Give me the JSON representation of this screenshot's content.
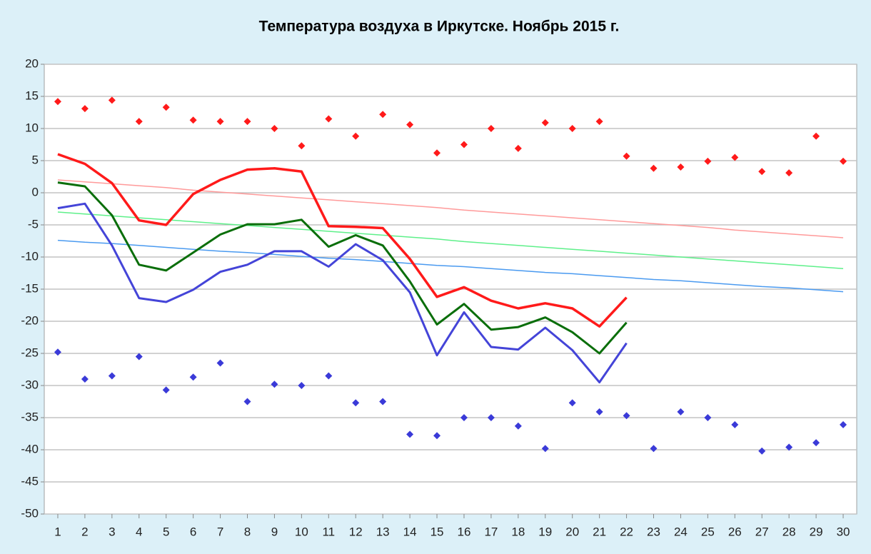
{
  "chart_data": {
    "type": "line",
    "title": "Температура воздуха в Иркутске. Ноябрь 2015 г.",
    "categories": [
      "1",
      "2",
      "3",
      "4",
      "5",
      "6",
      "7",
      "8",
      "9",
      "10",
      "11",
      "12",
      "13",
      "14",
      "15",
      "16",
      "17",
      "18",
      "19",
      "20",
      "21",
      "22",
      "23",
      "24",
      "25",
      "26",
      "27",
      "28",
      "29",
      "30"
    ],
    "ylim": [
      -50,
      20
    ],
    "yticks": [
      20,
      15,
      10,
      5,
      0,
      -5,
      -10,
      -15,
      -20,
      -25,
      -30,
      -35,
      -40,
      -45,
      -50
    ],
    "grid": true,
    "series": [
      {
        "color": "#ff9a9a",
        "style": "line",
        "width": 1.5,
        "values": [
          2,
          1.7,
          1.4,
          1.1,
          0.8,
          0.4,
          0.1,
          -0.2,
          -0.5,
          -0.8,
          -1.1,
          -1.4,
          -1.7,
          -2.0,
          -2.3,
          -2.7,
          -3.0,
          -3.3,
          -3.6,
          -3.9,
          -4.2,
          -4.5,
          -4.8,
          -5.1,
          -5.4,
          -5.8,
          -6.1,
          -6.4,
          -6.7,
          -7.0
        ]
      },
      {
        "color": "#5ef08a",
        "style": "line",
        "width": 1.5,
        "values": [
          -3,
          -3.3,
          -3.6,
          -3.9,
          -4.2,
          -4.5,
          -4.8,
          -5.1,
          -5.4,
          -5.7,
          -6.0,
          -6.3,
          -6.6,
          -6.9,
          -7.2,
          -7.6,
          -7.9,
          -8.2,
          -8.5,
          -8.8,
          -9.1,
          -9.4,
          -9.7,
          -10.0,
          -10.3,
          -10.6,
          -10.9,
          -11.2,
          -11.5,
          -11.8
        ]
      },
      {
        "color": "#4a9af0",
        "style": "line",
        "width": 1.5,
        "values": [
          -7.4,
          -7.7,
          -7.9,
          -8.2,
          -8.5,
          -8.8,
          -9.1,
          -9.3,
          -9.6,
          -9.9,
          -10.2,
          -10.4,
          -10.7,
          -11.0,
          -11.3,
          -11.5,
          -11.8,
          -12.1,
          -12.4,
          -12.6,
          -12.9,
          -13.2,
          -13.5,
          -13.7,
          -14.0,
          -14.3,
          -14.6,
          -14.8,
          -15.1,
          -15.4
        ]
      },
      {
        "color": "#ff1a1a",
        "style": "line",
        "width": 3.5,
        "values": [
          6,
          4.5,
          1.5,
          -4.3,
          -5,
          -0.2,
          2,
          3.6,
          3.8,
          3.3,
          -5.2,
          -5.3,
          -5.5,
          -10.3,
          -16.2,
          -14.7,
          -16.8,
          -18,
          -17.2,
          -18,
          -20.8,
          -16.3,
          null,
          null,
          null,
          null,
          null,
          null,
          null,
          null
        ]
      },
      {
        "color": "#0a6e0a",
        "style": "line",
        "width": 3,
        "values": [
          1.6,
          1,
          -3.5,
          -11.2,
          -12.1,
          -9.3,
          -6.5,
          -4.9,
          -4.9,
          -4.2,
          -8.4,
          -6.6,
          -8.2,
          -13.8,
          -20.5,
          -17.3,
          -21.3,
          -20.9,
          -19.4,
          -21.7,
          -25,
          -20.2,
          null,
          null,
          null,
          null,
          null,
          null,
          null,
          null
        ]
      },
      {
        "color": "#4444d8",
        "style": "line",
        "width": 3,
        "values": [
          -2.4,
          -1.7,
          -8.2,
          -16.4,
          -17,
          -15.1,
          -12.3,
          -11.2,
          -9.1,
          -9.1,
          -11.5,
          -8,
          -10.5,
          -15.5,
          -25.3,
          -18.6,
          -24,
          -24.4,
          -21,
          -24.5,
          -29.5,
          -23.4,
          null,
          null,
          null,
          null,
          null,
          null,
          null,
          null
        ]
      },
      {
        "color": "#ff1a1a",
        "style": "marker",
        "values": [
          14.2,
          13.1,
          14.4,
          11.1,
          13.3,
          11.3,
          11.1,
          11.1,
          10,
          7.3,
          11.5,
          8.8,
          12.2,
          10.6,
          6.2,
          7.5,
          10,
          6.9,
          10.9,
          10,
          11.1,
          5.7,
          3.8,
          4,
          4.9,
          5.5,
          3.3,
          3.1,
          8.8,
          4.9
        ]
      },
      {
        "color": "#3a3ad8",
        "style": "marker",
        "values": [
          -24.8,
          -29,
          -28.5,
          -25.5,
          -30.7,
          -28.7,
          -26.5,
          -32.5,
          -29.8,
          -30,
          -28.5,
          -32.7,
          -32.5,
          -37.6,
          -37.8,
          -35,
          -35,
          -36.3,
          -39.8,
          -32.7,
          -34.1,
          -34.7,
          -39.8,
          -34.1,
          -35,
          -36.1,
          -40.2,
          -39.6,
          -38.9,
          -36.1
        ]
      }
    ]
  }
}
